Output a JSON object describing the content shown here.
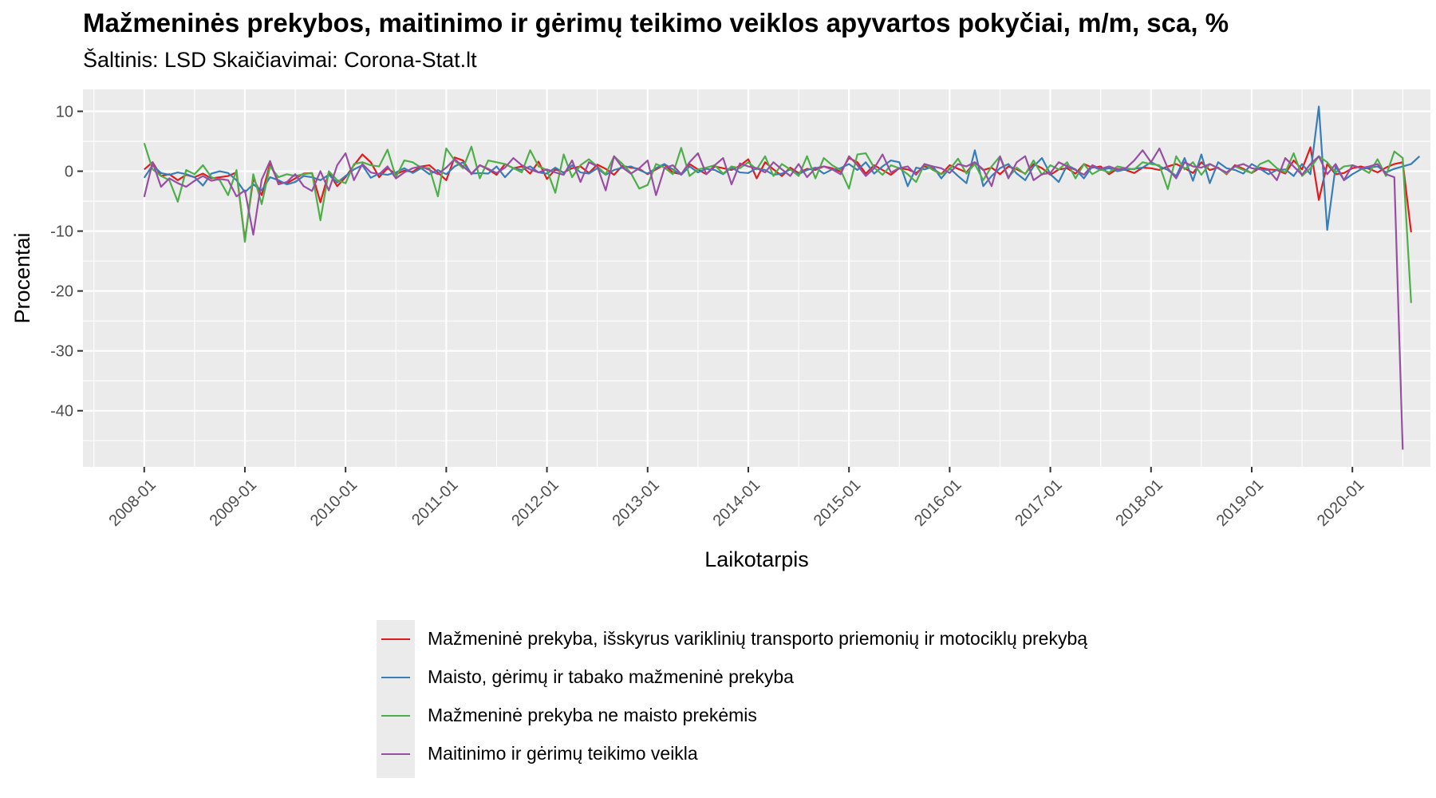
{
  "title": "Mažmeninės prekybos, maitinimo ir gėrimų teikimo veiklos apyvartos pokyčiai, m/m, sca, %",
  "subtitle": "Šaltinis: LSD Skaičiavimai: Corona-Stat.lt",
  "chart_data": {
    "type": "line",
    "xlabel": "Laikotarpis",
    "ylabel": "Procentai",
    "x_start": "2008-01",
    "x_end": "2020-03",
    "x_ticks": [
      "2008-01",
      "2009-01",
      "2010-01",
      "2011-01",
      "2012-01",
      "2013-01",
      "2014-01",
      "2015-01",
      "2016-01",
      "2017-01",
      "2018-01",
      "2019-01",
      "2020-01"
    ],
    "y_ticks": [
      10,
      0,
      -10,
      -20,
      -30,
      -40
    ],
    "ylim": [
      -46.5,
      10.8
    ],
    "grid": true,
    "legend_position": "bottom",
    "series": [
      {
        "name": "Mažmeninė prekyba, išskyrus variklinių transporto priemonių ir motociklų prekybą",
        "color": "#e41a1c",
        "values": [
          0.3,
          1.5,
          -0.8,
          -0.5,
          -1.5,
          -0.6,
          -1,
          -0.4,
          -1.2,
          -1,
          -0.8,
          -0.2,
          -11.5,
          -1.2,
          -4,
          1.2,
          -1.8,
          -2,
          -1.2,
          -0.4,
          -0.3,
          -5.2,
          -0.2,
          -2.5,
          -1,
          1,
          2.8,
          1.5,
          -1,
          0.5,
          -0.5,
          0.1,
          -0.1,
          0.8,
          1,
          -0.2,
          -1.5,
          2.3,
          1.8,
          -0.5,
          1,
          0.3,
          -0.6,
          1.2,
          0.5,
          0.8,
          -0.4,
          1.6,
          -1.3,
          0.3,
          -0.2,
          0.5,
          0.8,
          -0.3,
          1.1,
          0.4,
          -0.6,
          0.9,
          0.6,
          0.4,
          -0.5,
          0.3,
          1.1,
          -0.2,
          -0.5,
          1.2,
          0.3,
          -0.5,
          0.8,
          0.5,
          0.2,
          0.9,
          2,
          -1.2,
          1.5,
          0.3,
          -0.8,
          0.6,
          -0.3,
          0.4,
          0.2,
          0.8,
          0.5,
          -0.1,
          2.2,
          1.5,
          -0.4,
          1,
          0.2,
          -0.6,
          0.5,
          0.3,
          -0.3,
          0.8,
          0.4,
          -0.5,
          1,
          0.4,
          -0.2,
          1.5,
          0.2,
          0.6,
          -0.5,
          0.8,
          0.3,
          -0.4,
          1.2,
          0.5,
          -0.6,
          0.3,
          0.5,
          -0.4,
          1.2,
          0.6,
          0.8,
          -0.5,
          0.4,
          0.2,
          -0.3,
          0.6,
          0.5,
          0.2,
          0.8,
          1.2,
          0.5,
          -0.3,
          1.5,
          0.2,
          0.6,
          -0.5,
          1,
          0.4,
          -0.3,
          0.6,
          0.3,
          0.2,
          -0.4,
          1.8,
          0.3,
          4,
          -4.8,
          1.2,
          -0.5,
          -0.3,
          0.5,
          0.8,
          0.4,
          -0.2,
          0.6,
          1.2,
          1.5,
          -10.2
        ]
      },
      {
        "name": "Maisto, gėrimų ir tabako mažmeninė prekyba",
        "color": "#377eb8",
        "values": [
          -1.1,
          1,
          -0.3,
          -0.6,
          -0.2,
          -0.5,
          -1,
          -2.4,
          -0.4,
          0,
          -0.3,
          -1.5,
          -3.5,
          -2.2,
          -3.2,
          -1,
          -1.5,
          -2.2,
          -1.8,
          -0.8,
          -1,
          -1.5,
          -0.6,
          -1.9,
          -0.8,
          0.3,
          1,
          -1.1,
          -0.4,
          -0.6,
          -0.2,
          0.5,
          -0.3,
          0.5,
          -0.5,
          0.2,
          -0.5,
          0.8,
          1.5,
          -0.4,
          -0.3,
          -0.4,
          0.8,
          -1,
          0.5,
          0.2,
          0.8,
          -0.2,
          -0.4,
          0.6,
          -0.3,
          1,
          -0.2,
          -0.4,
          0.5,
          -0.6,
          0.2,
          0.6,
          0.8,
          0.2,
          -0.4,
          0.5,
          1.2,
          0.3,
          -0.6,
          0.8,
          -0.2,
          0.4,
          0.2,
          -0.5,
          0.6,
          -0.2,
          -0.3,
          0.5,
          0.2,
          -0.6,
          -0.4,
          0.3,
          -0.5,
          0.2,
          0.6,
          -0.4,
          0.3,
          0.5,
          1.2,
          0.2,
          1.5,
          -0.4,
          0.8,
          1.8,
          1.5,
          -2.5,
          0.6,
          0.3,
          0.8,
          -1.2,
          0.5,
          -0.8,
          -2,
          3.5,
          -2.5,
          -0.8,
          0.5,
          1.2,
          -0.4,
          -1.5,
          0.8,
          2.2,
          -0.5,
          -1.8,
          1,
          0.3,
          -1.2,
          0.8,
          0.2,
          0.5,
          0,
          0.3,
          0.4,
          0.6,
          1.5,
          0.8,
          0.2,
          -0.8,
          2.2,
          -1.6,
          2.8,
          -2,
          1.5,
          0.5,
          0.2,
          -0.4,
          1.2,
          0.4,
          -0.5,
          0.2,
          0.3,
          -0.8,
          1.2,
          -0.5,
          10.8,
          -9.8,
          0.8,
          -1.5,
          -0.5,
          0.3,
          0.6,
          0.8,
          -0.2,
          0.4,
          0.8,
          1.2,
          2.5
        ]
      },
      {
        "name": "Mažmeninė prekyba ne maisto prekėmis",
        "color": "#4daf4a",
        "values": [
          4.7,
          0.3,
          -0.8,
          -1.5,
          -5.1,
          0.2,
          -0.5,
          1,
          -1,
          -1.5,
          -4,
          0.2,
          -11.8,
          -0.5,
          -5.5,
          0.8,
          -1,
          -0.5,
          -0.8,
          -0.5,
          -0.3,
          -8.2,
          0,
          -1.5,
          -2,
          1.2,
          1.5,
          1,
          0.8,
          3.6,
          -1,
          1.8,
          1.5,
          0.6,
          0.5,
          -4.2,
          3.8,
          1.8,
          0.5,
          4.1,
          -1.2,
          1.8,
          1.5,
          1.2,
          0.5,
          -0.2,
          3.5,
          0.8,
          0.2,
          -3.6,
          2.8,
          -1,
          1,
          2,
          0.8,
          -0.5,
          2.5,
          1.2,
          -0.3,
          -2.9,
          -2.3,
          1.2,
          0.6,
          -0.5,
          3.9,
          -0.8,
          0.3,
          0.6,
          1,
          -0.4,
          0.8,
          0.5,
          1.5,
          0.3,
          2.5,
          -0.8,
          1.2,
          0.3,
          -0.8,
          2.5,
          -1.2,
          2.2,
          1,
          0.2,
          -2.9,
          2.8,
          3,
          0.6,
          -0.6,
          1,
          0.5,
          -0.5,
          -1.8,
          1.2,
          0.2,
          -0.5,
          0.3,
          2.1,
          -0.4,
          1.2,
          -1.5,
          0.8,
          2.5,
          -1,
          0.6,
          -0.5,
          1.8,
          -0.6,
          1,
          0.3,
          1.5,
          -1.2,
          1.2,
          -0.5,
          0.3,
          -0.2,
          0.8,
          0.5,
          0.3,
          1.5,
          1.2,
          1,
          -3,
          2.5,
          0.3,
          1.5,
          -0.6,
          1.2,
          0.5,
          -0.4,
          0.8,
          0.2,
          -0.3,
          1.2,
          1.8,
          0.5,
          -0.2,
          3,
          -0.8,
          0.5,
          2.5,
          1.5,
          -0.2,
          0.8,
          1,
          0.5,
          -0.3,
          2,
          -0.8,
          3.3,
          2.2,
          -22
        ]
      },
      {
        "name": "Maitinimo ir gėrimų teikimo veikla",
        "color": "#984ea3",
        "values": [
          -4.3,
          1.5,
          -2.6,
          -1.2,
          -2,
          -2.6,
          -1.6,
          -0.8,
          -1.6,
          -1.3,
          -1.5,
          -4.2,
          -3.2,
          -10.6,
          -1.4,
          1.7,
          -2.2,
          -1.8,
          -0.5,
          -2.5,
          -3.3,
          0,
          -3.2,
          1,
          3,
          -1.5,
          1.2,
          -0.2,
          -0.5,
          0.8,
          -1.2,
          -0.2,
          0.5,
          0.8,
          0.2,
          -0.5,
          0.6,
          2,
          0.8,
          -0.4,
          1,
          0.4,
          -0.3,
          0.6,
          2.2,
          1,
          0.3,
          -0.2,
          0.3,
          -0.2,
          -0.6,
          1.8,
          -1.8,
          1.5,
          0.8,
          -3.2,
          2.5,
          0.6,
          -0.4,
          0.5,
          1.8,
          -4,
          0.5,
          1,
          -0.5,
          1.5,
          3,
          -0.5,
          1,
          2.2,
          -2.2,
          1.3,
          0.8,
          0.5,
          -0.2,
          1.5,
          0.3,
          -0.8,
          1.2,
          -1,
          0.5,
          0.8,
          0.3,
          -0.5,
          2.5,
          1,
          -0.8,
          0.5,
          2.8,
          -0.2,
          0.5,
          0.8,
          -0.6,
          1.2,
          0.8,
          0.5,
          -0.3,
          1.2,
          0.8,
          1.5,
          0.3,
          -2.5,
          2.4,
          -1.2,
          1.5,
          2.5,
          -1.5,
          -0.5,
          -0.3,
          1.5,
          0.8,
          0.2,
          -0.6,
          1,
          0.4,
          0.8,
          0.3,
          0.5,
          1.8,
          3.5,
          1.5,
          3.8,
          0.5,
          -1.2,
          1.5,
          0.8,
          0.6,
          1.2,
          0.5,
          -0.2,
          0.8,
          1.2,
          0.5,
          0.3,
          0.2,
          -1.5,
          2.2,
          0.8,
          -0.6,
          1.2,
          2.5,
          -0.5,
          1.2,
          -1.5,
          1,
          0.5,
          0.8,
          1.2,
          -0.5,
          -1,
          -46.5
        ]
      }
    ]
  }
}
